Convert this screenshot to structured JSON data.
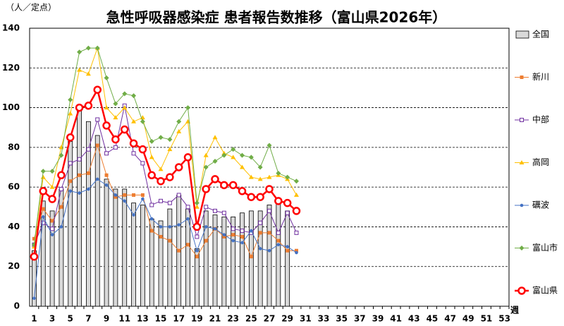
{
  "chart_data": {
    "type": "combo",
    "title": "急性呼吸器感染症 患者報告数推移（富山県2026年）",
    "y_label": "（人／定点）",
    "x_label": "週",
    "categories": [
      1,
      null,
      3,
      null,
      5,
      null,
      7,
      null,
      9,
      null,
      11,
      null,
      13,
      null,
      15,
      null,
      17,
      null,
      19,
      null,
      21,
      null,
      23,
      null,
      25,
      null,
      27,
      null,
      29,
      null,
      31,
      null,
      33,
      null,
      35,
      null,
      37,
      null,
      39,
      null,
      41,
      null,
      43,
      null,
      45,
      null,
      47,
      null,
      49,
      null,
      51,
      null,
      53
    ],
    "ylim": [
      0,
      140
    ],
    "yticks": [
      0,
      20,
      40,
      60,
      80,
      100,
      120,
      140
    ],
    "grid": true,
    "legend": "right",
    "series": [
      {
        "name": "全国",
        "type": "bar",
        "color": "#d9d9d9",
        "values": [
          28,
          53,
          48,
          59,
          83,
          101,
          93,
          86,
          64,
          59,
          59,
          52,
          51,
          44,
          43,
          49,
          56,
          49,
          29,
          48,
          46,
          45,
          45,
          47,
          48,
          48,
          51,
          52,
          48,
          null,
          null,
          null,
          null,
          null,
          null,
          null,
          null,
          null,
          null,
          null,
          null,
          null,
          null,
          null,
          null,
          null,
          null,
          null,
          null,
          null,
          null,
          null,
          null
        ]
      },
      {
        "name": "新川",
        "type": "line",
        "marker": "square",
        "color": "#ed7d31",
        "values": [
          34,
          49,
          43,
          50,
          63,
          66,
          67,
          81,
          66,
          55,
          56,
          56,
          56,
          38,
          35,
          33,
          28,
          31,
          25,
          33,
          39,
          35,
          36,
          35,
          25,
          37,
          37,
          33,
          28,
          28,
          null,
          null,
          null,
          null,
          null,
          null,
          null,
          null,
          null,
          null,
          null,
          null,
          null,
          null,
          null,
          null,
          null,
          null,
          null,
          null,
          null,
          null,
          null
        ]
      },
      {
        "name": "中部",
        "type": "line",
        "marker": "hollow-square",
        "color": "#7030a0",
        "values": [
          31,
          42,
          39,
          59,
          72,
          74,
          79,
          94,
          77,
          80,
          101,
          77,
          72,
          51,
          53,
          52,
          56,
          50,
          35,
          50,
          48,
          47,
          39,
          38,
          37,
          42,
          48,
          37,
          47,
          37,
          null,
          null,
          null,
          null,
          null,
          null,
          null,
          null,
          null,
          null,
          null,
          null,
          null,
          null,
          null,
          null,
          null,
          null,
          null,
          null,
          null,
          null,
          null
        ]
      },
      {
        "name": "高岡",
        "type": "line",
        "marker": "triangle",
        "color": "#ffc000",
        "values": [
          30,
          65,
          60,
          80,
          97,
          119,
          117,
          130,
          100,
          95,
          100,
          93,
          95,
          75,
          69,
          79,
          88,
          93,
          50,
          76,
          85,
          77,
          75,
          70,
          65,
          64,
          65,
          66,
          64,
          56,
          null,
          null,
          null,
          null,
          null,
          null,
          null,
          null,
          null,
          null,
          null,
          null,
          null,
          null,
          null,
          null,
          null,
          null,
          null,
          null,
          null,
          null,
          null
        ]
      },
      {
        "name": "礪波",
        "type": "line",
        "marker": "circle",
        "color": "#4472c4",
        "values": [
          4,
          45,
          36,
          40,
          58,
          57,
          59,
          64,
          61,
          56,
          53,
          46,
          54,
          44,
          40,
          40,
          41,
          44,
          28,
          40,
          39,
          36,
          33,
          32,
          38,
          29,
          28,
          31,
          30,
          27,
          null,
          null,
          null,
          null,
          null,
          null,
          null,
          null,
          null,
          null,
          null,
          null,
          null,
          null,
          null,
          null,
          null,
          null,
          null,
          null,
          null,
          null,
          null
        ]
      },
      {
        "name": "富山市",
        "type": "line",
        "marker": "diamond",
        "color": "#70ad47",
        "values": [
          31,
          68,
          68,
          76,
          104,
          128,
          130,
          130,
          115,
          102,
          107,
          106,
          93,
          83,
          85,
          84,
          93,
          100,
          52,
          70,
          73,
          76,
          79,
          76,
          75,
          70,
          81,
          67,
          65,
          63,
          null,
          null,
          null,
          null,
          null,
          null,
          null,
          null,
          null,
          null,
          null,
          null,
          null,
          null,
          null,
          null,
          null,
          null,
          null,
          null,
          null,
          null,
          null
        ]
      },
      {
        "name": "富山県",
        "type": "line",
        "marker": "big-circle",
        "color": "#ff0000",
        "values": [
          25,
          58,
          54,
          66,
          85,
          100,
          101,
          109,
          91,
          84,
          89,
          82,
          79,
          66,
          63,
          65,
          70,
          75,
          40,
          59,
          64,
          61,
          61,
          58,
          55,
          55,
          59,
          53,
          52,
          48,
          null,
          null,
          null,
          null,
          null,
          null,
          null,
          null,
          null,
          null,
          null,
          null,
          null,
          null,
          null,
          null,
          null,
          null,
          null,
          null,
          null,
          null,
          null
        ]
      }
    ]
  }
}
